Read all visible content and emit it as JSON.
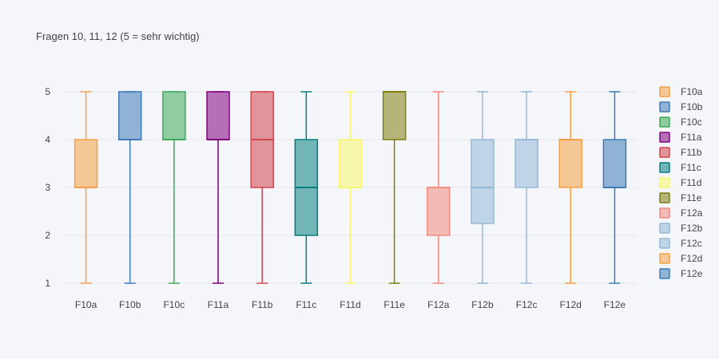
{
  "chart_data": {
    "type": "box",
    "title": "Fragen 10, 11, 12 (5 = sehr wichtig)",
    "xlabel": "",
    "ylabel": "",
    "ylim": [
      0.75,
      5.25
    ],
    "yticks": [
      1,
      2,
      3,
      4,
      5
    ],
    "grid": true,
    "legend_position": "right",
    "categories": [
      "F10a",
      "F10b",
      "F10c",
      "F11a",
      "F11b",
      "F11c",
      "F11d",
      "F11e",
      "F12a",
      "F12b",
      "F12c",
      "F12d",
      "F12e"
    ],
    "series": [
      {
        "name": "F10a",
        "min": 1,
        "q1": 3,
        "median": 3,
        "q3": 4,
        "max": 5,
        "color": "#f5a046"
      },
      {
        "name": "F10b",
        "min": 1,
        "q1": 4,
        "median": 4,
        "q3": 5,
        "max": 5,
        "color": "#3d7ab8"
      },
      {
        "name": "F10c",
        "min": 1,
        "q1": 4,
        "median": 4,
        "q3": 5,
        "max": 5,
        "color": "#3daa5a"
      },
      {
        "name": "F11a",
        "min": 1,
        "q1": 4,
        "median": 4,
        "q3": 5,
        "max": 5,
        "color": "#800080"
      },
      {
        "name": "F11b",
        "min": 1,
        "q1": 3,
        "median": 4,
        "q3": 5,
        "max": 5,
        "color": "#d0464e"
      },
      {
        "name": "F11c",
        "min": 1,
        "q1": 2,
        "median": 3,
        "q3": 4,
        "max": 5,
        "color": "#037f7f"
      },
      {
        "name": "F11d",
        "min": 1,
        "q1": 3,
        "median": 3,
        "q3": 4,
        "max": 5,
        "color": "#f6f670"
      },
      {
        "name": "F11e",
        "min": 1,
        "q1": 4,
        "median": 5,
        "q3": 5,
        "max": 5,
        "color": "#7f7f10"
      },
      {
        "name": "F12a",
        "min": 1,
        "q1": 2,
        "median": 3,
        "q3": 3,
        "max": 5,
        "color": "#f28a80"
      },
      {
        "name": "F12b",
        "min": 1,
        "q1": 2.25,
        "median": 3,
        "q3": 4,
        "max": 5,
        "color": "#94b8d8"
      },
      {
        "name": "F12c",
        "min": 1,
        "q1": 3,
        "median": 4,
        "q3": 4,
        "max": 5,
        "color": "#94b8d8"
      },
      {
        "name": "F12d",
        "min": 1,
        "q1": 3,
        "median": 4,
        "q3": 4,
        "max": 5,
        "color": "#f5a046"
      },
      {
        "name": "F12e",
        "min": 1,
        "q1": 3,
        "median": 3,
        "q3": 4,
        "max": 5,
        "color": "#3d7ab8"
      }
    ]
  }
}
